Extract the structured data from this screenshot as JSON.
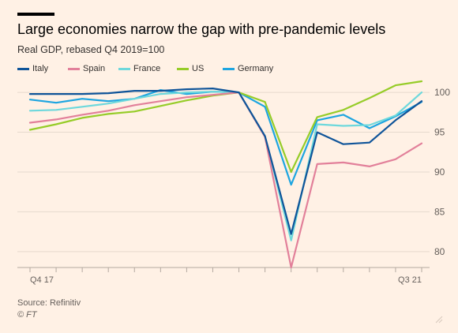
{
  "header": {
    "title": "Large economies narrow the gap with pre-pandemic levels",
    "subtitle": "Real GDP, rebased Q4 2019=100"
  },
  "footer": {
    "source": "Source: Refinitiv",
    "copyright": "© FT"
  },
  "colors": {
    "background": "#fff1e5",
    "gridline": "#e6d9ce",
    "axis_text": "#66605c"
  },
  "chart_data": {
    "type": "line",
    "title": "Large economies narrow the gap with pre-pandemic levels",
    "subtitle": "Real GDP, rebased Q4 2019=100",
    "xlabel": "",
    "ylabel": "",
    "x": [
      "Q4 17",
      "Q1 18",
      "Q2 18",
      "Q3 18",
      "Q4 18",
      "Q1 19",
      "Q2 19",
      "Q3 19",
      "Q4 19",
      "Q1 20",
      "Q2 20",
      "Q3 20",
      "Q4 20",
      "Q1 21",
      "Q2 21",
      "Q3 21"
    ],
    "x_tick_labels": [
      "Q4 17",
      "",
      "",
      "",
      "",
      "",
      "",
      "",
      "",
      "",
      "",
      "",
      "",
      "",
      "",
      "Q3 21"
    ],
    "ylim": [
      78,
      101.5
    ],
    "y_ticks": [
      80,
      85,
      90,
      95,
      100
    ],
    "grid": true,
    "legend_position": "top",
    "series": [
      {
        "name": "Italy",
        "color": "#0f5499",
        "values": [
          99.8,
          99.8,
          99.8,
          99.9,
          100.2,
          100.2,
          100.4,
          100.5,
          100.0,
          94.5,
          82.2,
          95.0,
          93.5,
          93.7,
          96.5,
          98.9
        ]
      },
      {
        "name": "Spain",
        "color": "#e2809a",
        "values": [
          96.2,
          96.6,
          97.2,
          97.7,
          98.4,
          98.9,
          99.4,
          99.7,
          100.0,
          94.4,
          78.0,
          91.0,
          91.2,
          90.7,
          91.6,
          93.6
        ]
      },
      {
        "name": "France",
        "color": "#6ed8dc",
        "values": [
          97.7,
          97.8,
          98.2,
          98.6,
          99.2,
          99.8,
          100.0,
          100.1,
          100.0,
          94.5,
          81.4,
          96.0,
          95.8,
          95.9,
          97.1,
          100.0
        ]
      },
      {
        "name": "US",
        "color": "#96cc28",
        "values": [
          95.3,
          96.0,
          96.8,
          97.3,
          97.6,
          98.3,
          99.0,
          99.6,
          100.0,
          98.8,
          90.0,
          96.9,
          97.8,
          99.3,
          100.9,
          101.4
        ]
      },
      {
        "name": "Germany",
        "color": "#1da5e0",
        "values": [
          99.1,
          98.7,
          99.2,
          98.9,
          99.2,
          100.3,
          99.8,
          100.1,
          100.0,
          98.2,
          88.4,
          96.5,
          97.2,
          95.5,
          97.0,
          98.8
        ]
      }
    ]
  }
}
